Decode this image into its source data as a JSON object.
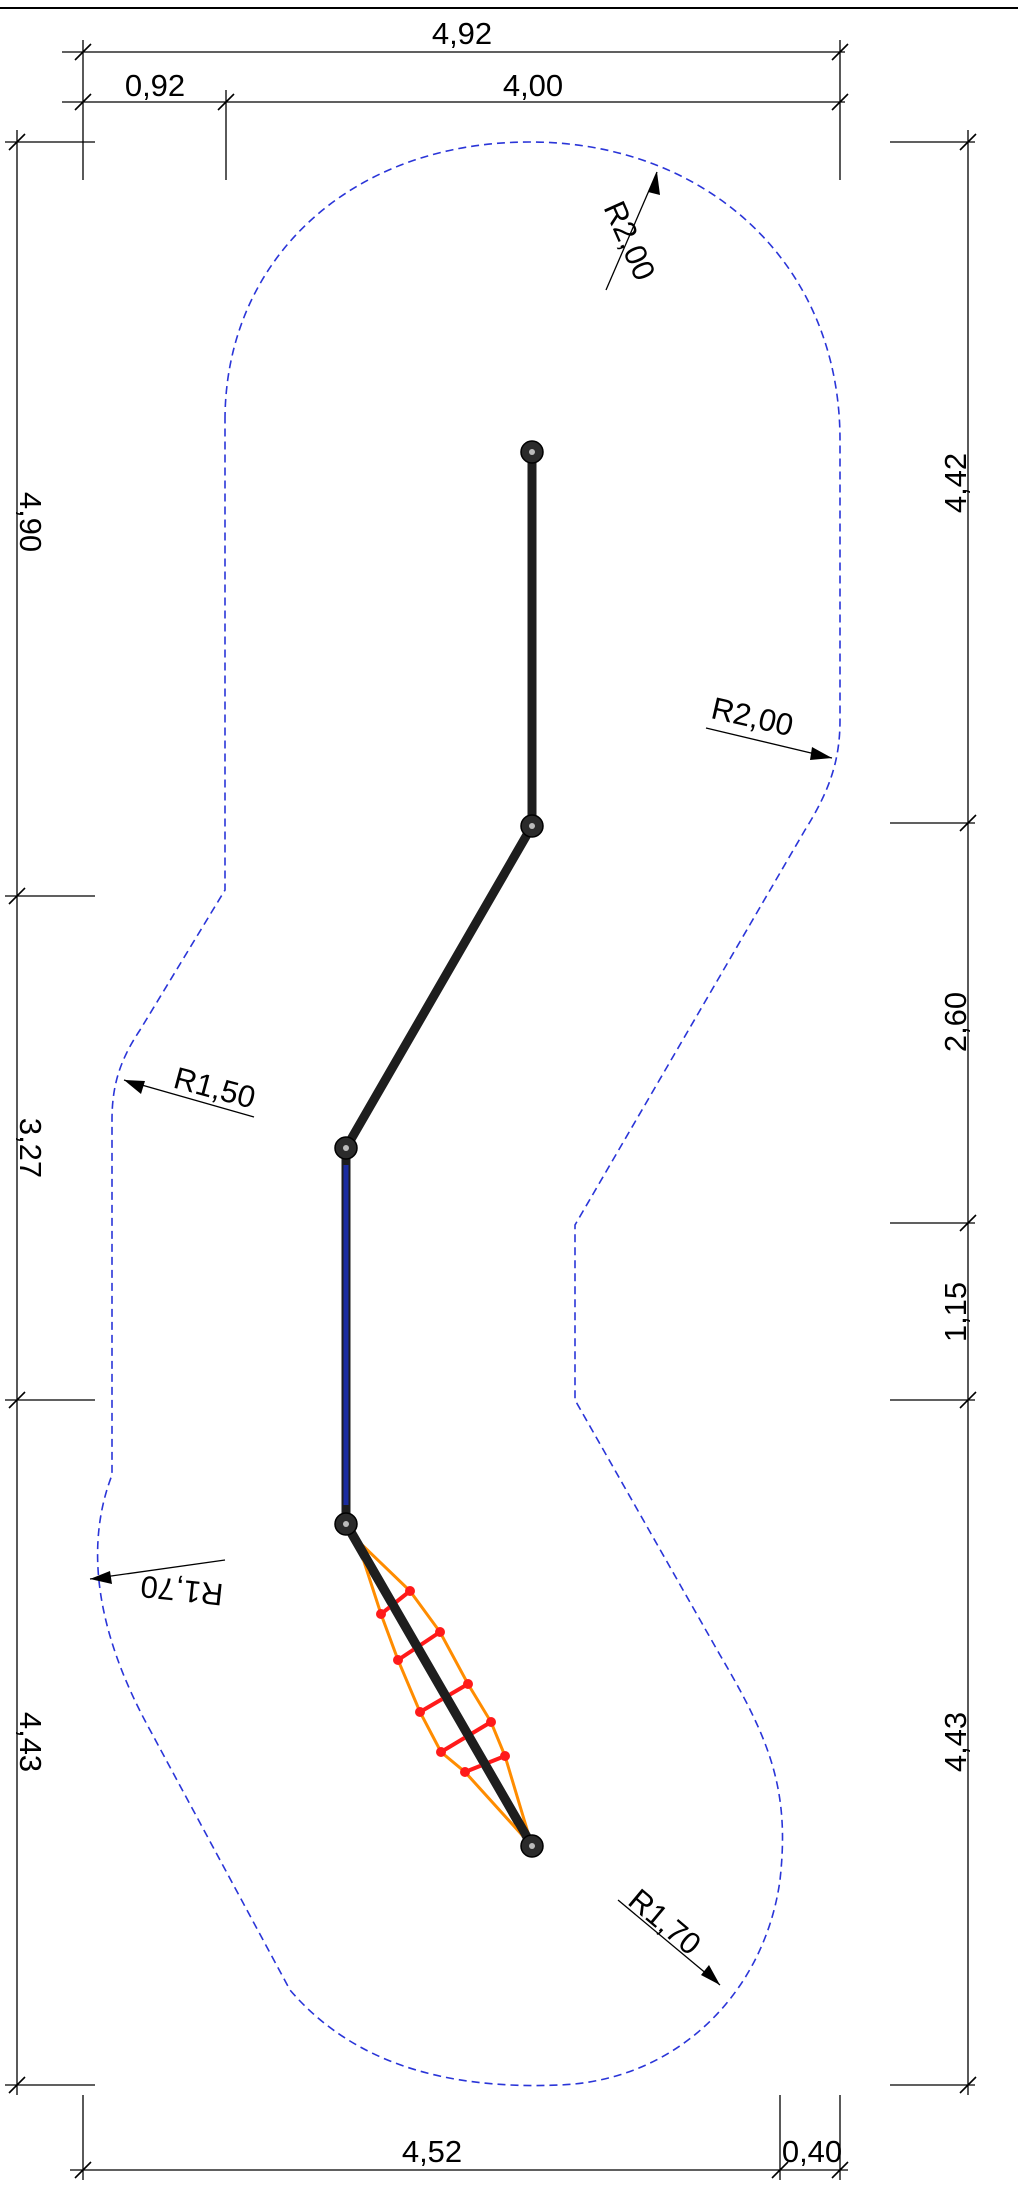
{
  "dimensions": {
    "top_total": "4,92",
    "top_left": "0,92",
    "top_right": "4,00",
    "left_upper": "4,90",
    "left_middle": "3,27",
    "left_lower": "4,43",
    "right_upper": "4,42",
    "right_middle": "2,60",
    "right_small": "1,15",
    "right_lower": "4,43",
    "bottom_left": "4,52",
    "bottom_right": "0,40"
  },
  "radii": {
    "top_right": "R2,00",
    "right_upper": "R2,00",
    "left_middle": "R1,50",
    "left_lower": "R1,70",
    "bottom_right": "R1,70"
  },
  "colors": {
    "boundary": "#2a35d8",
    "beam": "#1e1e1e",
    "blue_beam": "#1b2ca0",
    "net_rope": "#ff8c00",
    "net_rung": "#ff1a1a"
  },
  "elements": {
    "posts": [
      "post-icon",
      "post-icon",
      "post-icon",
      "post-icon",
      "post-icon"
    ],
    "net": "rope-net-icon"
  }
}
